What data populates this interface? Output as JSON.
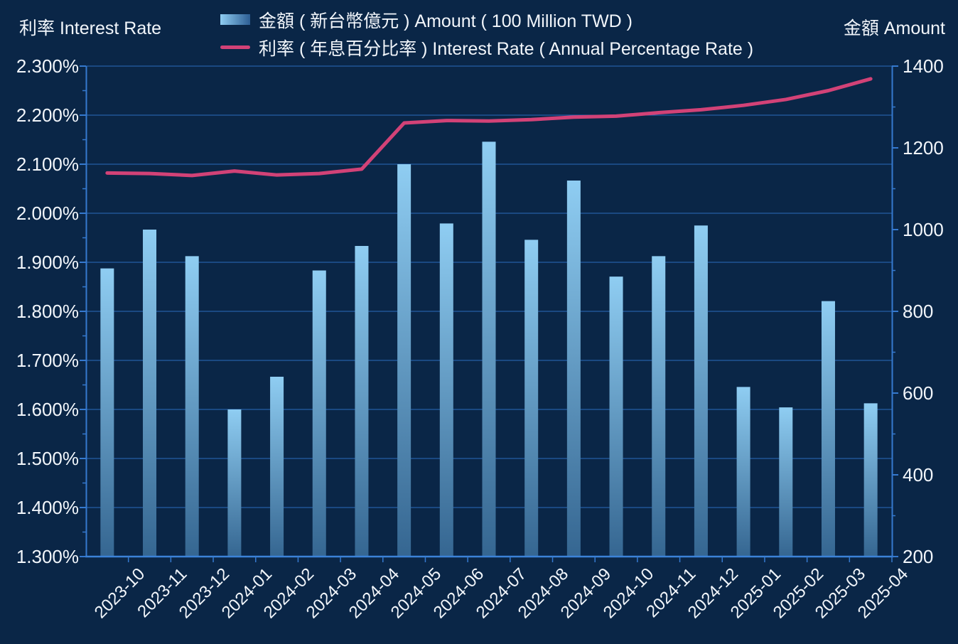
{
  "header": {
    "left_axis_title": "利率 Interest Rate",
    "right_axis_title": "金額 Amount"
  },
  "legend": [
    {
      "swatch": "bar-gradient-swatch",
      "label": "金額 ( 新台幣億元 ) Amount ( 100 Million TWD )"
    },
    {
      "swatch": "line-swatch",
      "label": "利率 ( 年息百分比率 ) Interest Rate ( Annual Percentage Rate )"
    }
  ],
  "chart_data": {
    "type": "bar",
    "subtype": "bar+line dual-axis combo",
    "categories": [
      "2023-10",
      "2023-11",
      "2023-12",
      "2024-01",
      "2024-02",
      "2024-03",
      "2024-04",
      "2024-05",
      "2024-06",
      "2024-07",
      "2024-08",
      "2024-09",
      "2024-10",
      "2024-11",
      "2024-12",
      "2025-01",
      "2025-02",
      "2025-03",
      "2025-04"
    ],
    "series": [
      {
        "name": "金額 ( 新台幣億元 ) Amount ( 100 Million TWD )",
        "type": "bar",
        "axis": "right",
        "values": [
          905,
          1000,
          935,
          560,
          640,
          900,
          960,
          1160,
          1015,
          1215,
          975,
          1120,
          885,
          935,
          1010,
          615,
          565,
          825,
          575
        ]
      },
      {
        "name": "利率 ( 年息百分比率 ) Interest Rate ( Annual Percentage Rate )",
        "type": "line",
        "axis": "left",
        "values_percent": [
          2.082,
          2.081,
          2.077,
          2.086,
          2.078,
          2.081,
          2.09,
          2.184,
          2.189,
          2.188,
          2.191,
          2.196,
          2.198,
          2.205,
          2.211,
          2.22,
          2.232,
          2.25,
          2.274
        ]
      }
    ],
    "left_axis": {
      "title": "利率 Interest Rate",
      "min": 1.3,
      "max": 2.3,
      "tick_step": 0.1,
      "tick_labels": [
        "2.300%",
        "2.200%",
        "2.100%",
        "2.000%",
        "1.900%",
        "1.800%",
        "1.700%",
        "1.600%",
        "1.500%",
        "1.400%",
        "1.300%"
      ]
    },
    "right_axis": {
      "title": "金額 Amount",
      "min": 200,
      "max": 1400,
      "tick_step": 200,
      "tick_labels": [
        "1400",
        "1200",
        "1000",
        "800",
        "600",
        "400",
        "200"
      ]
    },
    "grid": true,
    "legend_position": "top",
    "x_tick_rotation_deg": 45
  },
  "colors": {
    "background": "#0a2647",
    "gridline": "#2a6cbe",
    "axis": "#3579cf",
    "axis_bottom": "#3b82d8",
    "text": "#f2f6fb",
    "bar_top": "#8fcdf2",
    "bar_bottom": "#356691",
    "line": "#d24277"
  }
}
